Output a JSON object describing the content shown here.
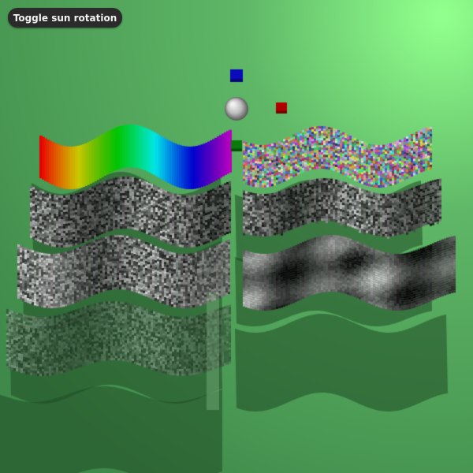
{
  "controls": {
    "toggle_sun_label": "Toggle sun rotation"
  },
  "scene": {
    "background_colors": [
      "#90ff8c",
      "#3f8a4a"
    ],
    "shadow_color": "#1f4a24",
    "objects": [
      {
        "name": "light-sphere",
        "shape": "sphere",
        "color": "#bdbdbd"
      },
      {
        "name": "blue-cube",
        "shape": "cube",
        "color": "#0b0bbb"
      },
      {
        "name": "red-cube",
        "shape": "cube",
        "color": "#b00000"
      },
      {
        "name": "green-cube",
        "shape": "cube",
        "color": "#0a7a0a"
      }
    ],
    "surfaces": [
      {
        "name": "rainbow-gradient-wave",
        "texture": "rainbow"
      },
      {
        "name": "color-noise-wave",
        "texture": "color-noise"
      },
      {
        "name": "gray-noise-wave-1",
        "texture": "gray-noise"
      },
      {
        "name": "gray-noise-wave-2",
        "texture": "gray-noise"
      },
      {
        "name": "shiny-noise-wave",
        "texture": "shiny-gray-noise"
      },
      {
        "name": "cloud-noise-wave",
        "texture": "perlin-noise"
      },
      {
        "name": "translucent-noise-wave",
        "texture": "translucent-gray-noise"
      }
    ]
  }
}
